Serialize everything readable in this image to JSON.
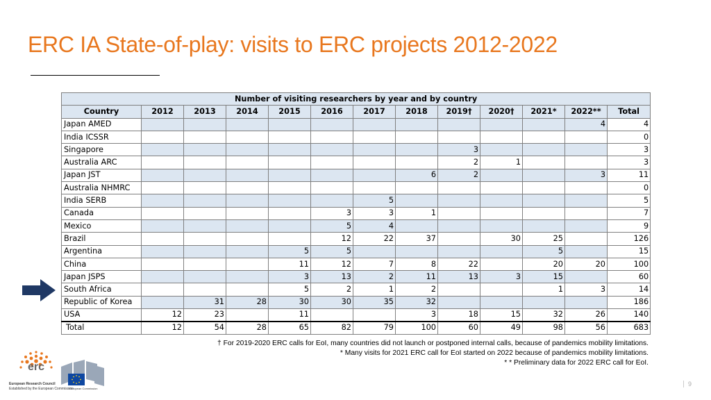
{
  "slide": {
    "title": "ERC IA State-of-play: visits to ERC projects 2012-2022",
    "page_number": "9"
  },
  "table": {
    "caption": "Number of visiting researchers by year and by country",
    "headers": [
      "Country",
      "2012",
      "2013",
      "2014",
      "2015",
      "2016",
      "2017",
      "2018",
      "2019†",
      "2020†",
      "2021*",
      "2022**",
      "Total"
    ],
    "rows": [
      [
        "Japan AMED",
        "",
        "",
        "",
        "",
        "",
        "",
        "",
        "",
        "",
        "",
        "4",
        "4"
      ],
      [
        "India ICSSR",
        "",
        "",
        "",
        "",
        "",
        "",
        "",
        "",
        "",
        "",
        "",
        "0"
      ],
      [
        "Singapore",
        "",
        "",
        "",
        "",
        "",
        "",
        "",
        "3",
        "",
        "",
        "",
        "3"
      ],
      [
        "Australia ARC",
        "",
        "",
        "",
        "",
        "",
        "",
        "",
        "2",
        "1",
        "",
        "",
        "3"
      ],
      [
        "Japan JST",
        "",
        "",
        "",
        "",
        "",
        "",
        "6",
        "2",
        "",
        "",
        "3",
        "11"
      ],
      [
        "Australia NHMRC",
        "",
        "",
        "",
        "",
        "",
        "",
        "",
        "",
        "",
        "",
        "",
        "0"
      ],
      [
        "India SERB",
        "",
        "",
        "",
        "",
        "",
        "5",
        "",
        "",
        "",
        "",
        "",
        "5"
      ],
      [
        "Canada",
        "",
        "",
        "",
        "",
        "3",
        "3",
        "1",
        "",
        "",
        "",
        "",
        "7"
      ],
      [
        "Mexico",
        "",
        "",
        "",
        "",
        "5",
        "4",
        "",
        "",
        "",
        "",
        "",
        "9"
      ],
      [
        "Brazil",
        "",
        "",
        "",
        "",
        "12",
        "22",
        "37",
        "",
        "30",
        "25",
        "",
        "126"
      ],
      [
        "Argentina",
        "",
        "",
        "",
        "5",
        "5",
        "",
        "",
        "",
        "",
        "5",
        "",
        "15"
      ],
      [
        "China",
        "",
        "",
        "",
        "11",
        "12",
        "7",
        "8",
        "22",
        "",
        "20",
        "20",
        "100"
      ],
      [
        "Japan JSPS",
        "",
        "",
        "",
        "3",
        "13",
        "2",
        "11",
        "13",
        "3",
        "15",
        "",
        "60"
      ],
      [
        "South Africa",
        "",
        "",
        "",
        "5",
        "2",
        "1",
        "2",
        "",
        "",
        "1",
        "3",
        "14"
      ],
      [
        "Republic of Korea",
        "",
        "31",
        "28",
        "30",
        "30",
        "35",
        "32",
        "",
        "",
        "",
        "",
        "186"
      ],
      [
        "USA",
        "12",
        "23",
        "",
        "11",
        "",
        "",
        "3",
        "18",
        "15",
        "32",
        "26",
        "140"
      ]
    ],
    "total_row": [
      "Total",
      "12",
      "54",
      "28",
      "65",
      "82",
      "79",
      "100",
      "60",
      "49",
      "98",
      "56",
      "683"
    ],
    "highlighted_row": "South Africa"
  },
  "notes": [
    "† For 2019-2020 ERC calls for EoI, many countries did not launch or postponed internal calls, because of pandemics mobility limitations.",
    "* Many visits for 2021 ERC call for EoI started on 2022 because of pandemics mobility limitations.",
    "* * Preliminary data for 2022 ERC call for EoI."
  ],
  "branding": {
    "erc_logo_text": "erc",
    "erc_caption": "European Research Council",
    "erc_tagline": "Established by the European Commission",
    "ec_caption": "European Commission"
  },
  "colors": {
    "title": "#e8771e",
    "header_fill": "#dce6f1",
    "arrow": "#1f3864"
  }
}
